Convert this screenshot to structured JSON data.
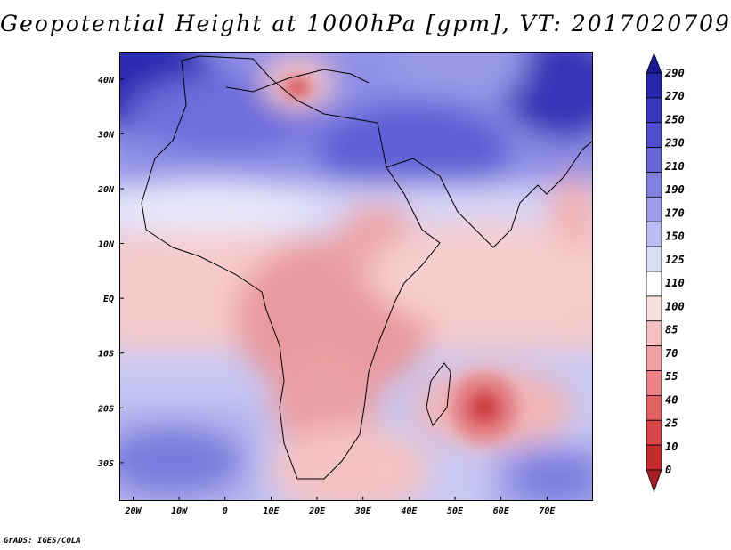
{
  "title": "Geopotential Height at 1000hPa [gpm], VT: 2017020709",
  "credit": "GrADS: IGES/COLA",
  "map": {
    "lon_range": [
      -23,
      80
    ],
    "lat_range": [
      -37,
      45
    ],
    "x_ticks": [
      "20W",
      "10W",
      "0",
      "10E",
      "20E",
      "30E",
      "40E",
      "50E",
      "60E",
      "70E"
    ],
    "x_tick_values": [
      -20,
      -10,
      0,
      10,
      20,
      30,
      40,
      50,
      60,
      70
    ],
    "y_ticks": [
      "40N",
      "30N",
      "20N",
      "10N",
      "EQ",
      "10S",
      "20S",
      "30S"
    ],
    "y_tick_values": [
      40,
      30,
      20,
      10,
      0,
      -10,
      -20,
      -30
    ]
  },
  "colorbar": {
    "levels": [
      "0",
      "10",
      "25",
      "40",
      "55",
      "70",
      "85",
      "100",
      "110",
      "125",
      "150",
      "170",
      "190",
      "210",
      "230",
      "250",
      "270",
      "290"
    ],
    "colors": [
      "#a81c24",
      "#c52a2f",
      "#d9444a",
      "#e26165",
      "#ea8286",
      "#f0a1a3",
      "#f6c0c1",
      "#fbdfdf",
      "#ffffff",
      "#dcdcf8",
      "#bcbcf2",
      "#9d9dea",
      "#8181e2",
      "#6767d8",
      "#4e4ecc",
      "#3838be",
      "#2727ac",
      "#1a1a96"
    ]
  }
}
